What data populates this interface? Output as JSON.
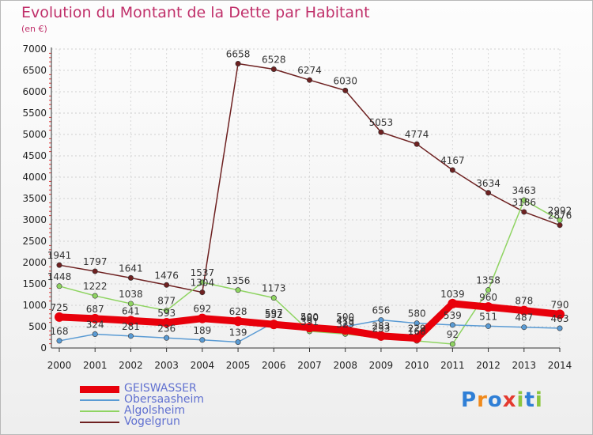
{
  "header": {
    "title": "Evolution du Montant de la Dette par Habitant",
    "subtitle": "(en €)"
  },
  "logo": {
    "text": "Proxiti",
    "colors": [
      "#2f7fd6",
      "#f08a1c",
      "#2f7fd6",
      "#e43a2f",
      "#8cc63f",
      "#2f7fd6",
      "#8cc63f"
    ]
  },
  "chart_data": {
    "type": "line",
    "title": "Evolution du Montant de la Dette par Habitant",
    "subtitle": "(en €)",
    "x": [
      2000,
      2001,
      2002,
      2003,
      2004,
      2005,
      2006,
      2007,
      2008,
      2009,
      2010,
      2011,
      2012,
      2013,
      2014
    ],
    "ylim": [
      0,
      7000
    ],
    "yticks": [
      0,
      500,
      1000,
      1500,
      2000,
      2500,
      3000,
      3500,
      4000,
      4500,
      5000,
      5500,
      6000,
      6500,
      7000
    ],
    "grid": true,
    "legend": "bottom-left",
    "series": [
      {
        "name": "GEISWASSER",
        "color": "#e8000b",
        "values": [
          725,
          687,
          641,
          593,
          692,
          628,
          552,
          480,
          419,
          283,
          229,
          1039,
          960,
          878,
          790
        ]
      },
      {
        "name": "Obersaasheim",
        "color": "#5a9bd4",
        "values": [
          168,
          324,
          281,
          236,
          189,
          139,
          597,
          500,
          500,
          656,
          580,
          539,
          511,
          487,
          463
        ]
      },
      {
        "name": "Algolsheim",
        "color": "#8fd462",
        "values": [
          1448,
          1222,
          1038,
          877,
          1537,
          1356,
          1173,
          391,
          329,
          233,
          166,
          92,
          1358,
          3463,
          2992
        ]
      },
      {
        "name": "Vogelgrun",
        "color": "#6e2121",
        "values": [
          1941,
          1797,
          1641,
          1476,
          1304,
          6658,
          6528,
          6274,
          6030,
          5053,
          4774,
          4167,
          3634,
          3186,
          2876
        ]
      }
    ]
  }
}
